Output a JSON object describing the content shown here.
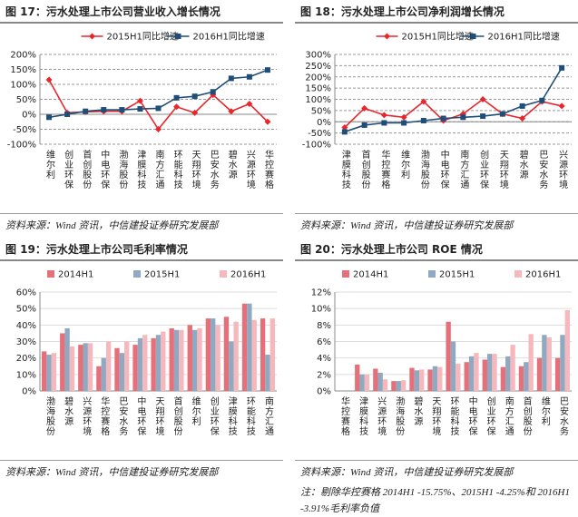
{
  "chart_data": [
    {
      "type": "line",
      "title": "图 17：污水处理上市公司营业收入增长情况",
      "source": "资料来源：Wind 资讯，中信建投证券研究发展部",
      "categories": [
        "维尔利",
        "创业环保",
        "首创股份",
        "中电环保",
        "渤海股份",
        "津膜科技",
        "南方汇通",
        "环能科技",
        "天翔环境",
        "巴安水务",
        "碧水源",
        "兴源环境",
        "华控赛格"
      ],
      "series": [
        {
          "name": "2015H1同比增速",
          "color": "#e8262c",
          "marker": "diamond",
          "values": [
            115,
            5,
            8,
            10,
            10,
            45,
            -50,
            25,
            5,
            65,
            10,
            35,
            -25
          ]
        },
        {
          "name": "2016H1同比增速",
          "color": "#1f4e79",
          "marker": "square",
          "values": [
            -10,
            0,
            10,
            15,
            15,
            18,
            20,
            55,
            60,
            75,
            120,
            125,
            148
          ]
        }
      ],
      "ylim": [
        -100,
        200
      ],
      "yticks": [
        {
          "value": -100,
          "label": "-100%"
        },
        {
          "value": -50,
          "label": "-50%"
        },
        {
          "value": 0,
          "label": "0%"
        },
        {
          "value": 50,
          "label": "50%"
        },
        {
          "value": 100,
          "label": "100%"
        },
        {
          "value": 150,
          "label": "150%"
        },
        {
          "value": 200,
          "label": "200%"
        }
      ],
      "grid": true
    },
    {
      "type": "line",
      "title": "图 18：污水处理上市公司净利润增长情况",
      "source": "资料来源：Wind 资讯，中信建投证券研究发展部",
      "categories": [
        "津膜科技",
        "首创股份",
        "华控赛格",
        "维尔利",
        "渤海股份",
        "中电环保",
        "南方汇通",
        "创业环保",
        "天翔环境",
        "碧水源",
        "巴安水务",
        "兴源环境"
      ],
      "series": [
        {
          "name": "2015H1同比增速",
          "color": "#e8262c",
          "marker": "diamond",
          "values": [
            -25,
            60,
            30,
            20,
            90,
            5,
            35,
            100,
            35,
            15,
            90,
            70
          ]
        },
        {
          "name": "2016H1同比增速",
          "color": "#1f4e79",
          "marker": "square",
          "values": [
            -45,
            -15,
            -5,
            -5,
            5,
            15,
            20,
            25,
            35,
            70,
            95,
            240
          ]
        }
      ],
      "ylim": [
        -100,
        300
      ],
      "yticks": [
        {
          "value": -100,
          "label": "-100%"
        },
        {
          "value": -50,
          "label": "-50%"
        },
        {
          "value": 0,
          "label": "0%"
        },
        {
          "value": 50,
          "label": "50%"
        },
        {
          "value": 100,
          "label": "100%"
        },
        {
          "value": 150,
          "label": "150%"
        },
        {
          "value": 200,
          "label": "200%"
        },
        {
          "value": 250,
          "label": "250%"
        },
        {
          "value": 300,
          "label": "300%"
        }
      ],
      "grid": true
    },
    {
      "type": "bar",
      "title": "图 19：污水处理上市公司毛利率情况",
      "source": "资料来源：Wind 资讯，中信建投证券研究发展部",
      "categories": [
        "渤海股份",
        "碧水源",
        "兴源环境",
        "华控赛格",
        "巴安水务",
        "中电环保",
        "天翔环境",
        "首创股份",
        "维尔利",
        "创业环保",
        "津膜科技",
        "环能科技",
        "南方汇通"
      ],
      "series": [
        {
          "name": "2014H1",
          "color": "#e6707a",
          "values": [
            24,
            35,
            28,
            15,
            26,
            28,
            32,
            38,
            40,
            44,
            45,
            53,
            44
          ]
        },
        {
          "name": "2015H1",
          "color": "#8ea9c1",
          "values": [
            22,
            38,
            29,
            20,
            23,
            32,
            34,
            37,
            37,
            44,
            30,
            53,
            22
          ]
        },
        {
          "name": "2016H1",
          "color": "#f5b8bd",
          "values": [
            23,
            27,
            29,
            30,
            30,
            34,
            36,
            37,
            38,
            40,
            42,
            43,
            44
          ]
        }
      ],
      "ylim": [
        0,
        60
      ],
      "yticks": [
        {
          "value": 0,
          "label": "0%"
        },
        {
          "value": 10,
          "label": "10%"
        },
        {
          "value": 20,
          "label": "20%"
        },
        {
          "value": 30,
          "label": "30%"
        },
        {
          "value": 40,
          "label": "40%"
        },
        {
          "value": 50,
          "label": "50%"
        },
        {
          "value": 60,
          "label": "60%"
        }
      ],
      "grid": true
    },
    {
      "type": "bar",
      "title": "图 20：污水处理上市公司 ROE 情况",
      "source": "资料来源：Wind 资讯，中信建投证券研究发展部",
      "note": "注：剔除华控赛格 2014H1 -15.75%、2015H1 -4.25%和 2016H1 -3.91%毛利率负值",
      "categories": [
        "华控赛格",
        "津膜科技",
        "兴源环境",
        "渤海股份",
        "碧水源",
        "天翔环境",
        "环能科技",
        "中电环保",
        "创业环保",
        "南方汇通",
        "首创股份",
        "维尔利",
        "巴安水务"
      ],
      "series": [
        {
          "name": "2014H1",
          "color": "#e6707a",
          "values": [
            null,
            3.2,
            2.7,
            1.2,
            2.8,
            2.6,
            8.4,
            3.5,
            3.8,
            2.9,
            3.0,
            4.0,
            4.0
          ]
        },
        {
          "name": "2015H1",
          "color": "#8ea9c1",
          "values": [
            null,
            2.0,
            2.2,
            1.2,
            2.5,
            3.0,
            6.0,
            4.2,
            4.5,
            4.2,
            3.5,
            6.8,
            6.8
          ]
        },
        {
          "name": "2016H1",
          "color": "#f5b8bd",
          "values": [
            null,
            2.0,
            1.4,
            1.3,
            2.6,
            2.9,
            3.3,
            4.6,
            4.5,
            5.6,
            6.9,
            6.5,
            9.8
          ]
        }
      ],
      "ylim": [
        0,
        12
      ],
      "yticks": [
        {
          "value": 0,
          "label": "0%"
        },
        {
          "value": 2,
          "label": "2%"
        },
        {
          "value": 4,
          "label": "4%"
        },
        {
          "value": 6,
          "label": "6%"
        },
        {
          "value": 8,
          "label": "8%"
        },
        {
          "value": 10,
          "label": "10%"
        },
        {
          "value": 12,
          "label": "12%"
        }
      ],
      "grid": true
    }
  ]
}
